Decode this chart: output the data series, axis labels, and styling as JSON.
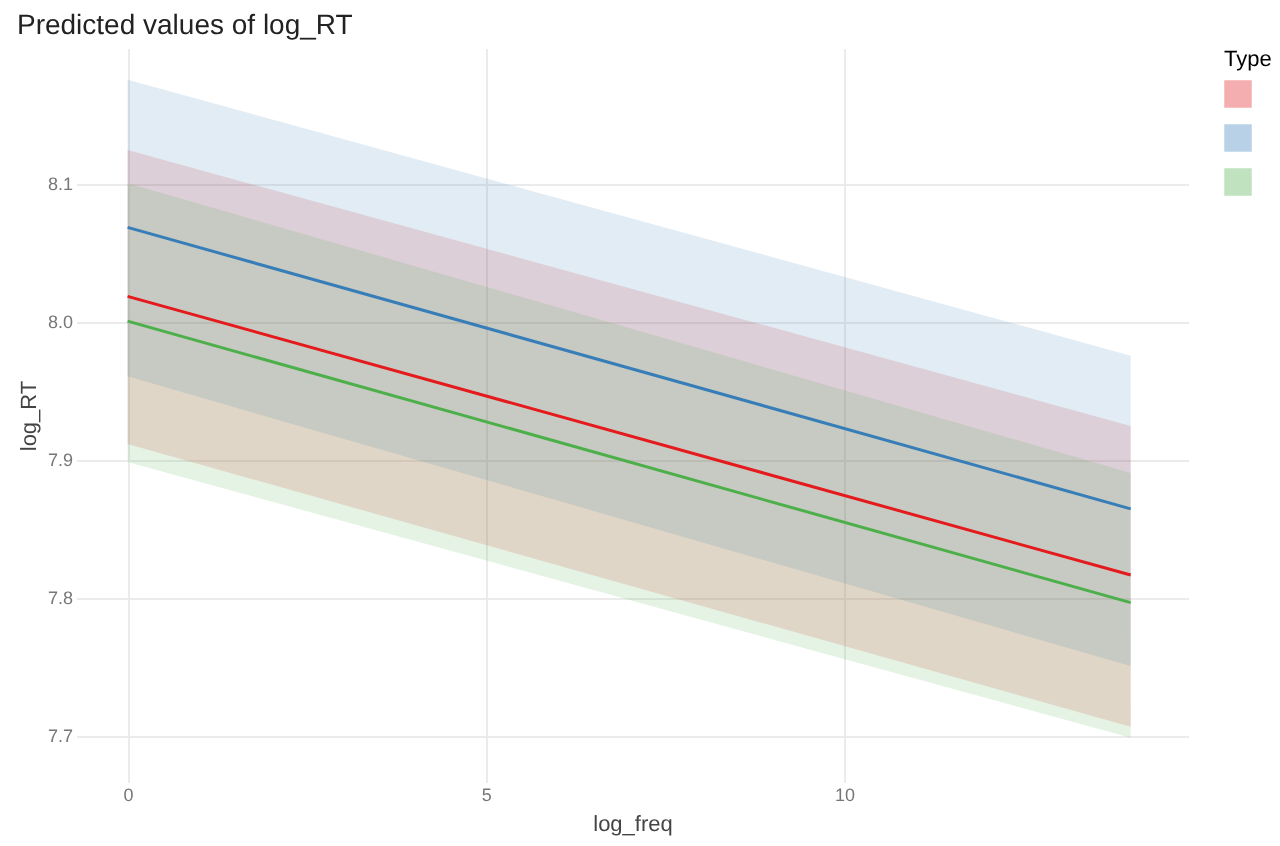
{
  "chart_data": {
    "type": "line",
    "title": "Predicted values of log_RT",
    "xlabel": "log_freq",
    "ylabel": "log_RT",
    "legend_title": "Type",
    "x": [
      0,
      14
    ],
    "series": [
      {
        "color": "#e41a1c",
        "values": [
          8.018,
          7.816
        ],
        "lower": [
          7.911,
          7.706
        ],
        "upper": [
          8.124,
          7.924
        ]
      },
      {
        "color": "#377eb8",
        "values": [
          8.068,
          7.864
        ],
        "lower": [
          7.96,
          7.75
        ],
        "upper": [
          8.175,
          7.975
        ]
      },
      {
        "color": "#4daf4a",
        "values": [
          8.0,
          7.796
        ],
        "lower": [
          7.898,
          7.698
        ],
        "upper": [
          8.1,
          7.89
        ]
      }
    ],
    "xlim": [
      -0.72,
      14.8
    ],
    "xticks": [
      0,
      5,
      10
    ],
    "ylim": [
      7.666,
      8.198
    ],
    "yticks": [
      {
        "value": 7.7,
        "label": "7.7"
      },
      {
        "value": 7.8,
        "label": "7.8"
      },
      {
        "value": 7.9,
        "label": "7.9"
      },
      {
        "value": 8.0,
        "label": "8.0"
      },
      {
        "value": 8.1,
        "label": "8.1"
      }
    ],
    "grid": true
  }
}
